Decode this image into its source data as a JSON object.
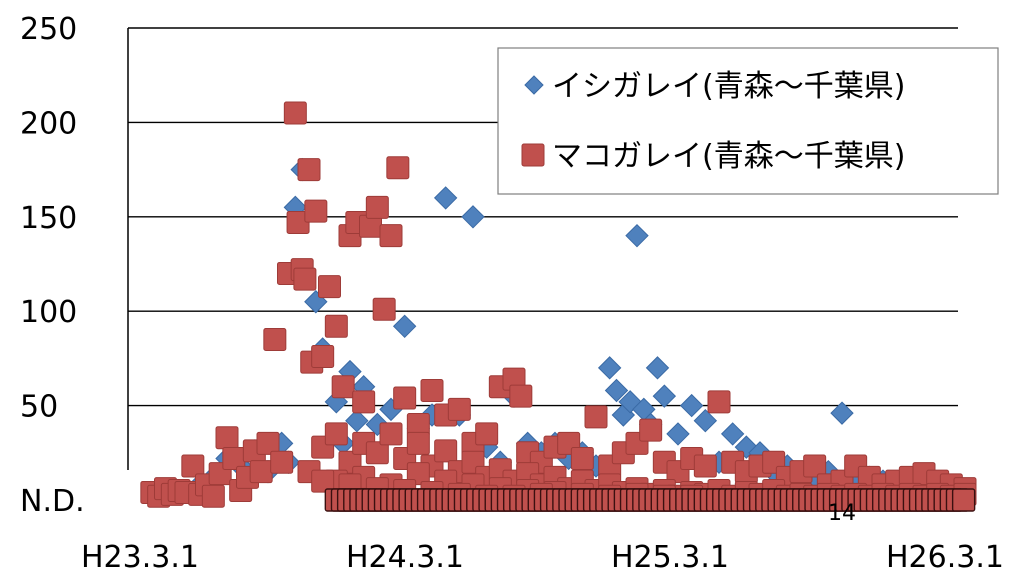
{
  "chart_data": {
    "type": "scatter",
    "title": "",
    "xlabel": "",
    "ylabel": "",
    "ylim": [
      0,
      250
    ],
    "y_ticks": [
      {
        "value": 0,
        "label": "N.D."
      },
      {
        "value": 50,
        "label": "50"
      },
      {
        "value": 100,
        "label": "100"
      },
      {
        "value": 150,
        "label": "150"
      },
      {
        "value": 200,
        "label": "200"
      },
      {
        "value": 250,
        "label": "250"
      }
    ],
    "x_ticks": [
      "H23.3.1",
      "H24.3.1",
      "H25.3.1",
      "H26.3.1"
    ],
    "x_axis_note": "x values are months since H23.3.1 (March 2011)",
    "grid": true,
    "legend_position": "top-right",
    "annotation": "14",
    "series": [
      {
        "name": "イシガレイ(青森〜千葉県)",
        "marker": "diamond",
        "color": "#4F81BD",
        "points": [
          [
            2,
            4
          ],
          [
            4,
            8
          ],
          [
            5,
            12
          ],
          [
            6,
            22
          ],
          [
            7,
            18
          ],
          [
            8,
            26
          ],
          [
            9,
            15
          ],
          [
            10,
            30
          ],
          [
            10.5,
            20
          ],
          [
            11.5,
            175
          ],
          [
            11,
            155
          ],
          [
            12.5,
            105
          ],
          [
            13,
            80
          ],
          [
            14,
            52
          ],
          [
            14.5,
            30
          ],
          [
            15,
            68
          ],
          [
            15.5,
            42
          ],
          [
            16,
            60
          ],
          [
            17,
            40
          ],
          [
            18,
            48
          ],
          [
            19,
            92
          ],
          [
            20,
            38
          ],
          [
            21,
            45
          ],
          [
            22,
            160
          ],
          [
            23,
            45
          ],
          [
            24,
            150
          ],
          [
            25,
            28
          ],
          [
            26,
            20
          ],
          [
            27,
            55
          ],
          [
            28,
            30
          ],
          [
            29,
            25
          ],
          [
            30,
            30
          ],
          [
            31,
            22
          ],
          [
            32,
            25
          ],
          [
            33,
            18
          ],
          [
            34,
            70
          ],
          [
            34.5,
            58
          ],
          [
            35,
            45
          ],
          [
            35.5,
            52
          ],
          [
            36,
            140
          ],
          [
            36.5,
            48
          ],
          [
            37,
            40
          ],
          [
            37.5,
            70
          ],
          [
            38,
            55
          ],
          [
            39,
            35
          ],
          [
            40,
            50
          ],
          [
            41,
            42
          ],
          [
            42,
            20
          ],
          [
            43,
            35
          ],
          [
            44,
            28
          ],
          [
            45,
            25
          ],
          [
            46,
            15
          ],
          [
            47,
            18
          ],
          [
            48,
            12
          ],
          [
            49,
            10
          ],
          [
            50,
            15
          ],
          [
            51,
            46
          ],
          [
            52,
            8
          ],
          [
            53,
            12
          ],
          [
            54,
            10
          ],
          [
            55,
            8
          ],
          [
            56,
            6
          ]
        ]
      },
      {
        "name": "マコガレイ(青森〜千葉県)",
        "marker": "square",
        "color": "#C0504D",
        "points": [
          [
            0.5,
            4
          ],
          [
            1,
            2
          ],
          [
            1.5,
            6
          ],
          [
            2,
            3
          ],
          [
            2.5,
            5
          ],
          [
            3,
            4
          ],
          [
            3.5,
            18
          ],
          [
            4,
            3
          ],
          [
            4.5,
            8
          ],
          [
            5,
            2
          ],
          [
            5.5,
            14
          ],
          [
            6,
            33
          ],
          [
            6.5,
            22
          ],
          [
            7,
            5
          ],
          [
            7.5,
            12
          ],
          [
            8,
            26
          ],
          [
            8.5,
            15
          ],
          [
            9,
            30
          ],
          [
            9.5,
            85
          ],
          [
            10,
            20
          ],
          [
            10.5,
            120
          ],
          [
            11,
            205
          ],
          [
            11.2,
            147
          ],
          [
            11.5,
            122
          ],
          [
            11.7,
            117
          ],
          [
            12,
            175
          ],
          [
            12.2,
            73
          ],
          [
            12.5,
            153
          ],
          [
            13,
            76
          ],
          [
            13.5,
            113
          ],
          [
            14,
            92
          ],
          [
            14.5,
            60
          ],
          [
            15,
            140
          ],
          [
            15.5,
            147
          ],
          [
            16,
            52
          ],
          [
            16.5,
            145
          ],
          [
            17,
            155
          ],
          [
            17.5,
            101
          ],
          [
            18,
            140
          ],
          [
            18.5,
            176
          ],
          [
            19,
            54
          ],
          [
            20,
            40
          ],
          [
            21,
            58
          ],
          [
            22,
            45
          ],
          [
            23,
            48
          ],
          [
            24,
            30
          ],
          [
            25,
            35
          ],
          [
            26,
            60
          ],
          [
            27,
            64
          ],
          [
            27.5,
            55
          ],
          [
            28,
            25
          ],
          [
            29,
            20
          ],
          [
            30,
            28
          ],
          [
            31,
            30
          ],
          [
            32,
            22
          ],
          [
            33,
            44
          ],
          [
            34,
            18
          ],
          [
            35,
            25
          ],
          [
            36,
            30
          ],
          [
            37,
            37
          ],
          [
            38,
            20
          ],
          [
            39,
            15
          ],
          [
            40,
            22
          ],
          [
            41,
            18
          ],
          [
            42,
            52
          ],
          [
            43,
            20
          ],
          [
            44,
            15
          ],
          [
            45,
            18
          ],
          [
            46,
            20
          ],
          [
            47,
            12
          ],
          [
            48,
            15
          ],
          [
            49,
            18
          ],
          [
            50,
            8
          ],
          [
            51,
            10
          ],
          [
            52,
            18
          ],
          [
            53,
            12
          ],
          [
            54,
            8
          ],
          [
            55,
            10
          ],
          [
            56,
            12
          ],
          [
            57,
            14
          ],
          [
            58,
            10
          ],
          [
            59,
            8
          ],
          [
            60,
            6
          ],
          [
            13,
            28
          ],
          [
            14,
            35
          ],
          [
            15,
            20
          ],
          [
            16,
            30
          ],
          [
            17,
            25
          ],
          [
            18,
            35
          ],
          [
            19,
            22
          ],
          [
            20,
            30
          ],
          [
            21,
            18
          ],
          [
            22,
            26
          ],
          [
            23,
            15
          ],
          [
            24,
            20
          ],
          [
            25,
            12
          ],
          [
            26,
            16
          ],
          [
            27,
            10
          ],
          [
            28,
            14
          ],
          [
            29,
            8
          ],
          [
            30,
            12
          ],
          [
            31,
            6
          ],
          [
            32,
            10
          ],
          [
            33,
            5
          ],
          [
            34,
            8
          ],
          [
            35,
            4
          ],
          [
            36,
            6
          ],
          [
            37,
            3
          ],
          [
            38,
            5
          ],
          [
            39,
            2
          ],
          [
            40,
            4
          ],
          [
            41,
            3
          ],
          [
            42,
            5
          ],
          [
            43,
            2
          ],
          [
            44,
            4
          ],
          [
            45,
            3
          ],
          [
            46,
            5
          ],
          [
            47,
            2
          ],
          [
            48,
            3
          ],
          [
            49,
            2
          ],
          [
            50,
            3
          ],
          [
            51,
            2
          ],
          [
            52,
            3
          ],
          [
            53,
            2
          ],
          [
            54,
            3
          ],
          [
            55,
            2
          ],
          [
            56,
            3
          ],
          [
            57,
            2
          ],
          [
            58,
            3
          ],
          [
            59,
            2
          ],
          [
            60,
            3
          ],
          [
            14,
            10
          ],
          [
            16,
            12
          ],
          [
            18,
            8
          ],
          [
            20,
            14
          ],
          [
            22,
            10
          ],
          [
            24,
            8
          ],
          [
            26,
            6
          ],
          [
            28,
            5
          ],
          [
            30,
            4
          ],
          [
            32,
            3
          ],
          [
            34,
            2
          ],
          [
            36,
            3
          ],
          [
            38,
            2
          ],
          [
            40,
            2
          ],
          [
            12,
            15
          ],
          [
            13,
            10
          ],
          [
            15,
            8
          ],
          [
            17,
            6
          ],
          [
            19,
            5
          ],
          [
            21,
            4
          ],
          [
            23,
            3
          ],
          [
            25,
            2
          ],
          [
            27,
            2
          ],
          [
            29,
            3
          ]
        ]
      }
    ]
  }
}
